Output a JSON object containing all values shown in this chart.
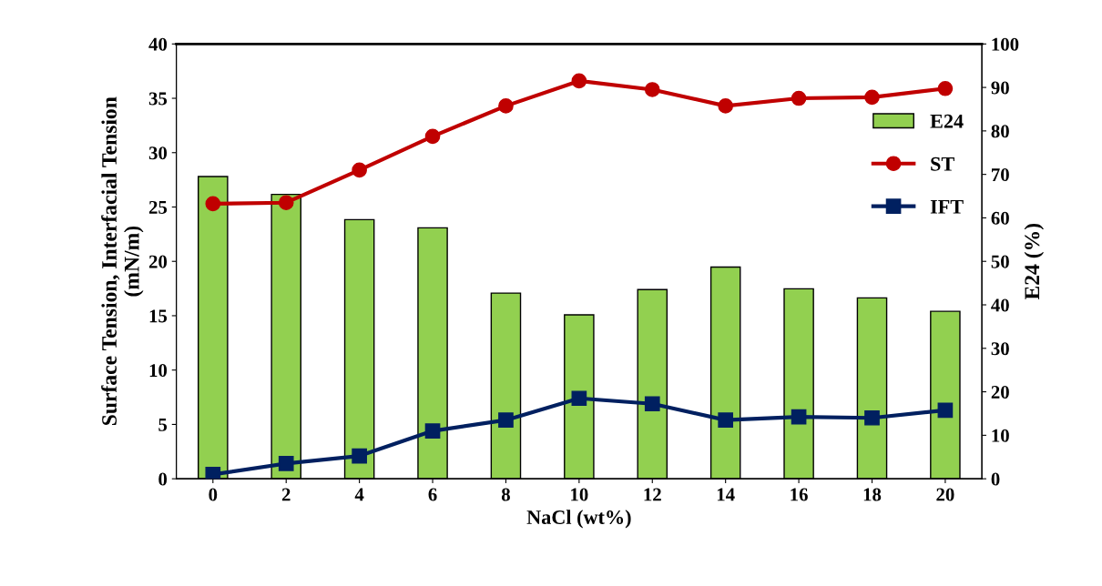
{
  "chart_data": {
    "type": "bar",
    "xlabel": "NaCl (wt%)",
    "ylabel": "Surface Tension, Interfacial Tension\n(mN/m)",
    "y2label": "E24 (%)",
    "categories": [
      "0",
      "2",
      "4",
      "6",
      "8",
      "10",
      "12",
      "14",
      "16",
      "18",
      "20"
    ],
    "series": [
      {
        "name": "E24",
        "axis": "y2",
        "color": "#92d050",
        "values": [
          69.5,
          65.4,
          59.6,
          57.7,
          42.7,
          37.7,
          43.5,
          48.7,
          43.7,
          41.6,
          38.5
        ]
      },
      {
        "name": "ST",
        "type": "line",
        "marker": "circle",
        "color": "#c00000",
        "values": [
          25.3,
          25.4,
          28.4,
          31.5,
          34.3,
          36.6,
          35.8,
          34.3,
          35.0,
          35.1,
          35.9
        ]
      },
      {
        "name": "IFT",
        "type": "line",
        "marker": "square",
        "color": "#002060",
        "values": [
          0.4,
          1.4,
          2.1,
          4.4,
          5.4,
          7.4,
          6.9,
          5.4,
          5.7,
          5.6,
          6.3
        ]
      }
    ],
    "ylim": [
      0,
      40
    ],
    "yticks": [
      0,
      5,
      10,
      15,
      20,
      25,
      30,
      35,
      40
    ],
    "y2lim": [
      0,
      100
    ],
    "y2ticks": [
      0,
      10,
      20,
      30,
      40,
      50,
      60,
      70,
      80,
      90,
      100
    ],
    "grid": false,
    "legend": "right"
  }
}
